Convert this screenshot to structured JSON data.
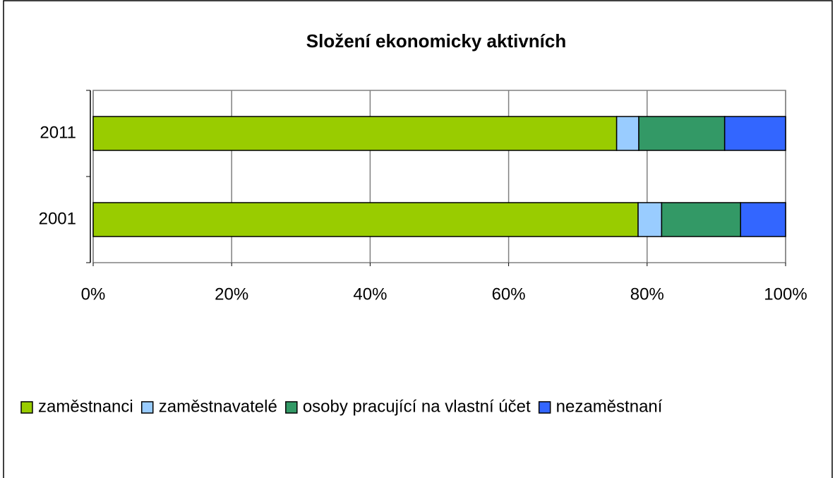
{
  "chart_data": {
    "type": "stacked-bar-horizontal",
    "title": "Složení ekonomicky aktivních",
    "categories": [
      "2011",
      "2001"
    ],
    "series": [
      {
        "name": "zaměstnanci",
        "color": "#99cc00",
        "values": [
          75.6,
          78.7
        ]
      },
      {
        "name": "zaměstnavatelé",
        "color": "#99ccff",
        "values": [
          3.2,
          3.4
        ]
      },
      {
        "name": "osoby pracující na vlastní účet",
        "color": "#339966",
        "values": [
          12.4,
          11.4
        ]
      },
      {
        "name": "nezaměstnaní",
        "color": "#3366ff",
        "values": [
          8.8,
          6.5
        ]
      }
    ],
    "xlim": [
      0,
      100
    ],
    "xticks": [
      {
        "value": 0,
        "label": "0%"
      },
      {
        "value": 20,
        "label": "20%"
      },
      {
        "value": 40,
        "label": "40%"
      },
      {
        "value": 60,
        "label": "60%"
      },
      {
        "value": 80,
        "label": "80%"
      },
      {
        "value": 100,
        "label": "100%"
      }
    ],
    "grid": true,
    "legend": "bottom"
  }
}
